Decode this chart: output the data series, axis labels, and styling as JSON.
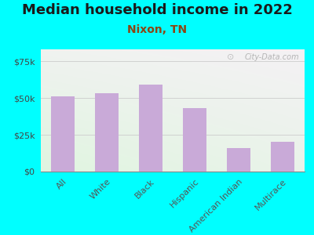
{
  "title": "Median household income in 2022",
  "subtitle": "Nixon, TN",
  "categories": [
    "All",
    "White",
    "Black",
    "Hispanic",
    "American Indian",
    "Multirace"
  ],
  "values": [
    51000,
    53000,
    59000,
    43000,
    16000,
    20000
  ],
  "bar_color": "#c9aad8",
  "background_color": "#00FFFF",
  "title_color": "#1a1a1a",
  "subtitle_color": "#8B4513",
  "ylabel_ticks": [
    "$0",
    "$25k",
    "$50k",
    "$75k"
  ],
  "ytick_vals": [
    0,
    25000,
    50000,
    75000
  ],
  "ylim": [
    0,
    83000
  ],
  "watermark": "City-Data.com",
  "title_fontsize": 13,
  "subtitle_fontsize": 10,
  "tick_fontsize": 8,
  "xlabel_fontsize": 8
}
